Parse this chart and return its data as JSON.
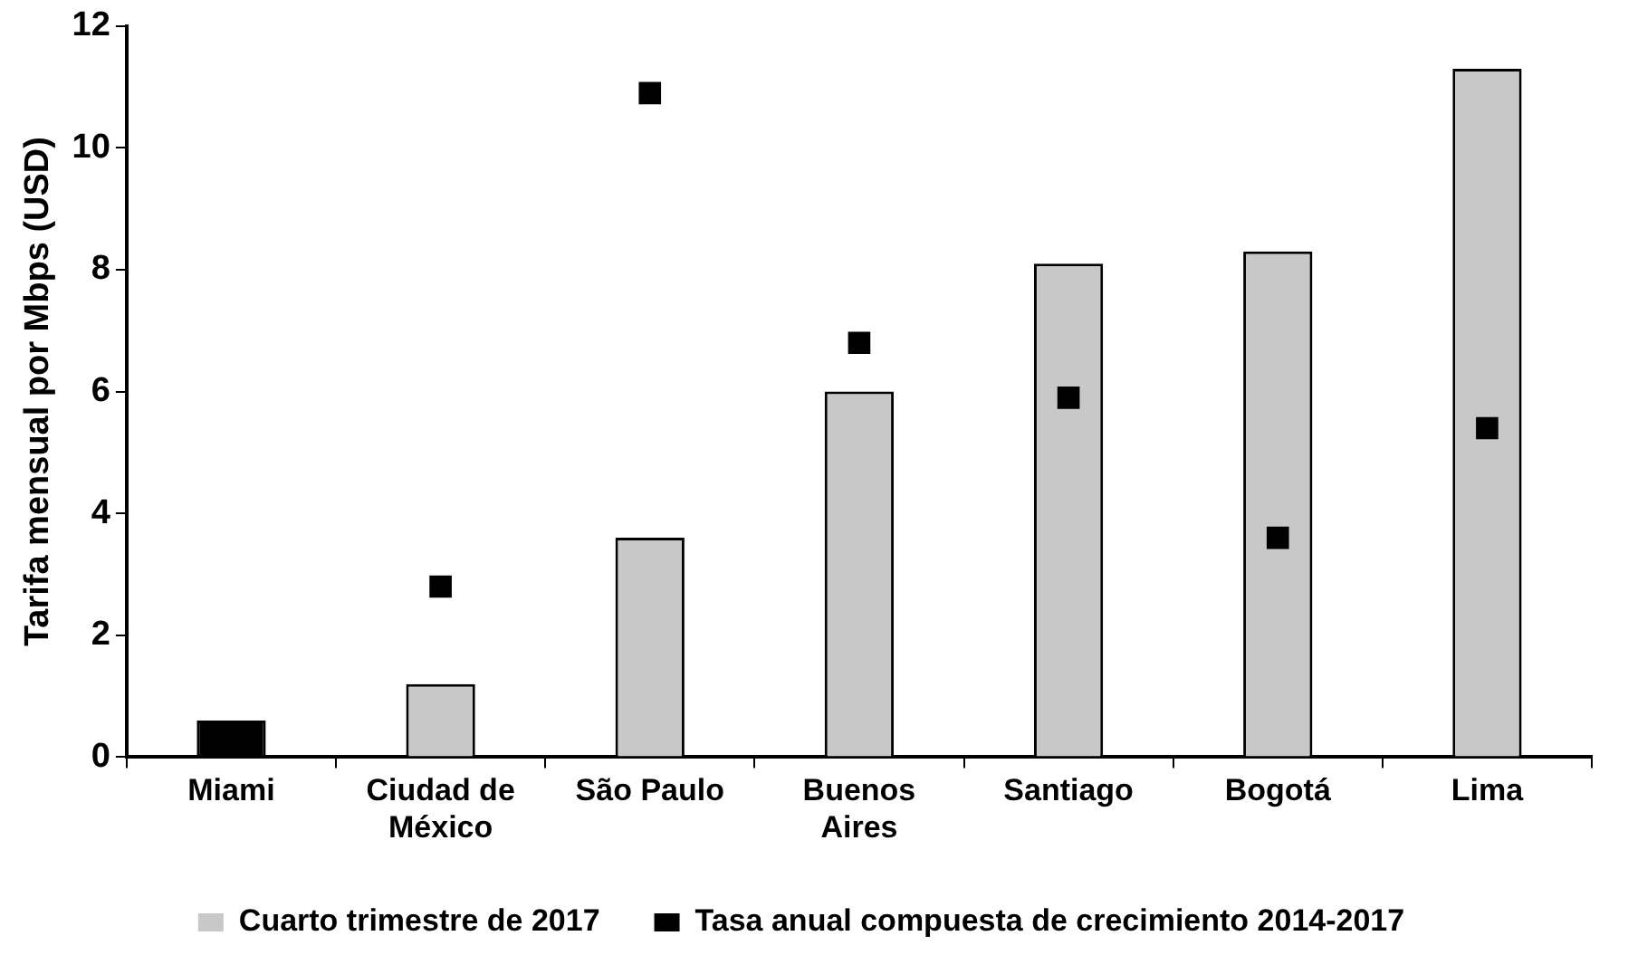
{
  "chart_data": {
    "type": "bar",
    "ylabel": "Tarifa mensual por Mbps (USD)",
    "categories": [
      "Miami",
      "Ciudad de México",
      "São Paulo",
      "Buenos Aires",
      "Santiago",
      "Bogotá",
      "Lima"
    ],
    "series": [
      {
        "name": "Cuarto trimestre de 2017",
        "color": "#c8c8c8",
        "colors": [
          "#000000",
          "#c8c8c8",
          "#c8c8c8",
          "#c8c8c8",
          "#c8c8c8",
          "#c8c8c8",
          "#c8c8c8"
        ],
        "values": [
          0.6,
          1.2,
          3.6,
          6.0,
          8.1,
          8.3,
          11.3
        ]
      },
      {
        "name": "Tasa anual compuesta de crecimiento 2014-2017",
        "type": "scatter",
        "color": "#000000",
        "values": [
          null,
          2.8,
          10.9,
          6.8,
          5.9,
          3.6,
          5.4
        ]
      }
    ],
    "marker": "square",
    "ylim": [
      0,
      12
    ],
    "yticks": [
      0,
      2,
      4,
      6,
      8,
      10,
      12
    ],
    "grid": false,
    "legend": "bottom"
  }
}
